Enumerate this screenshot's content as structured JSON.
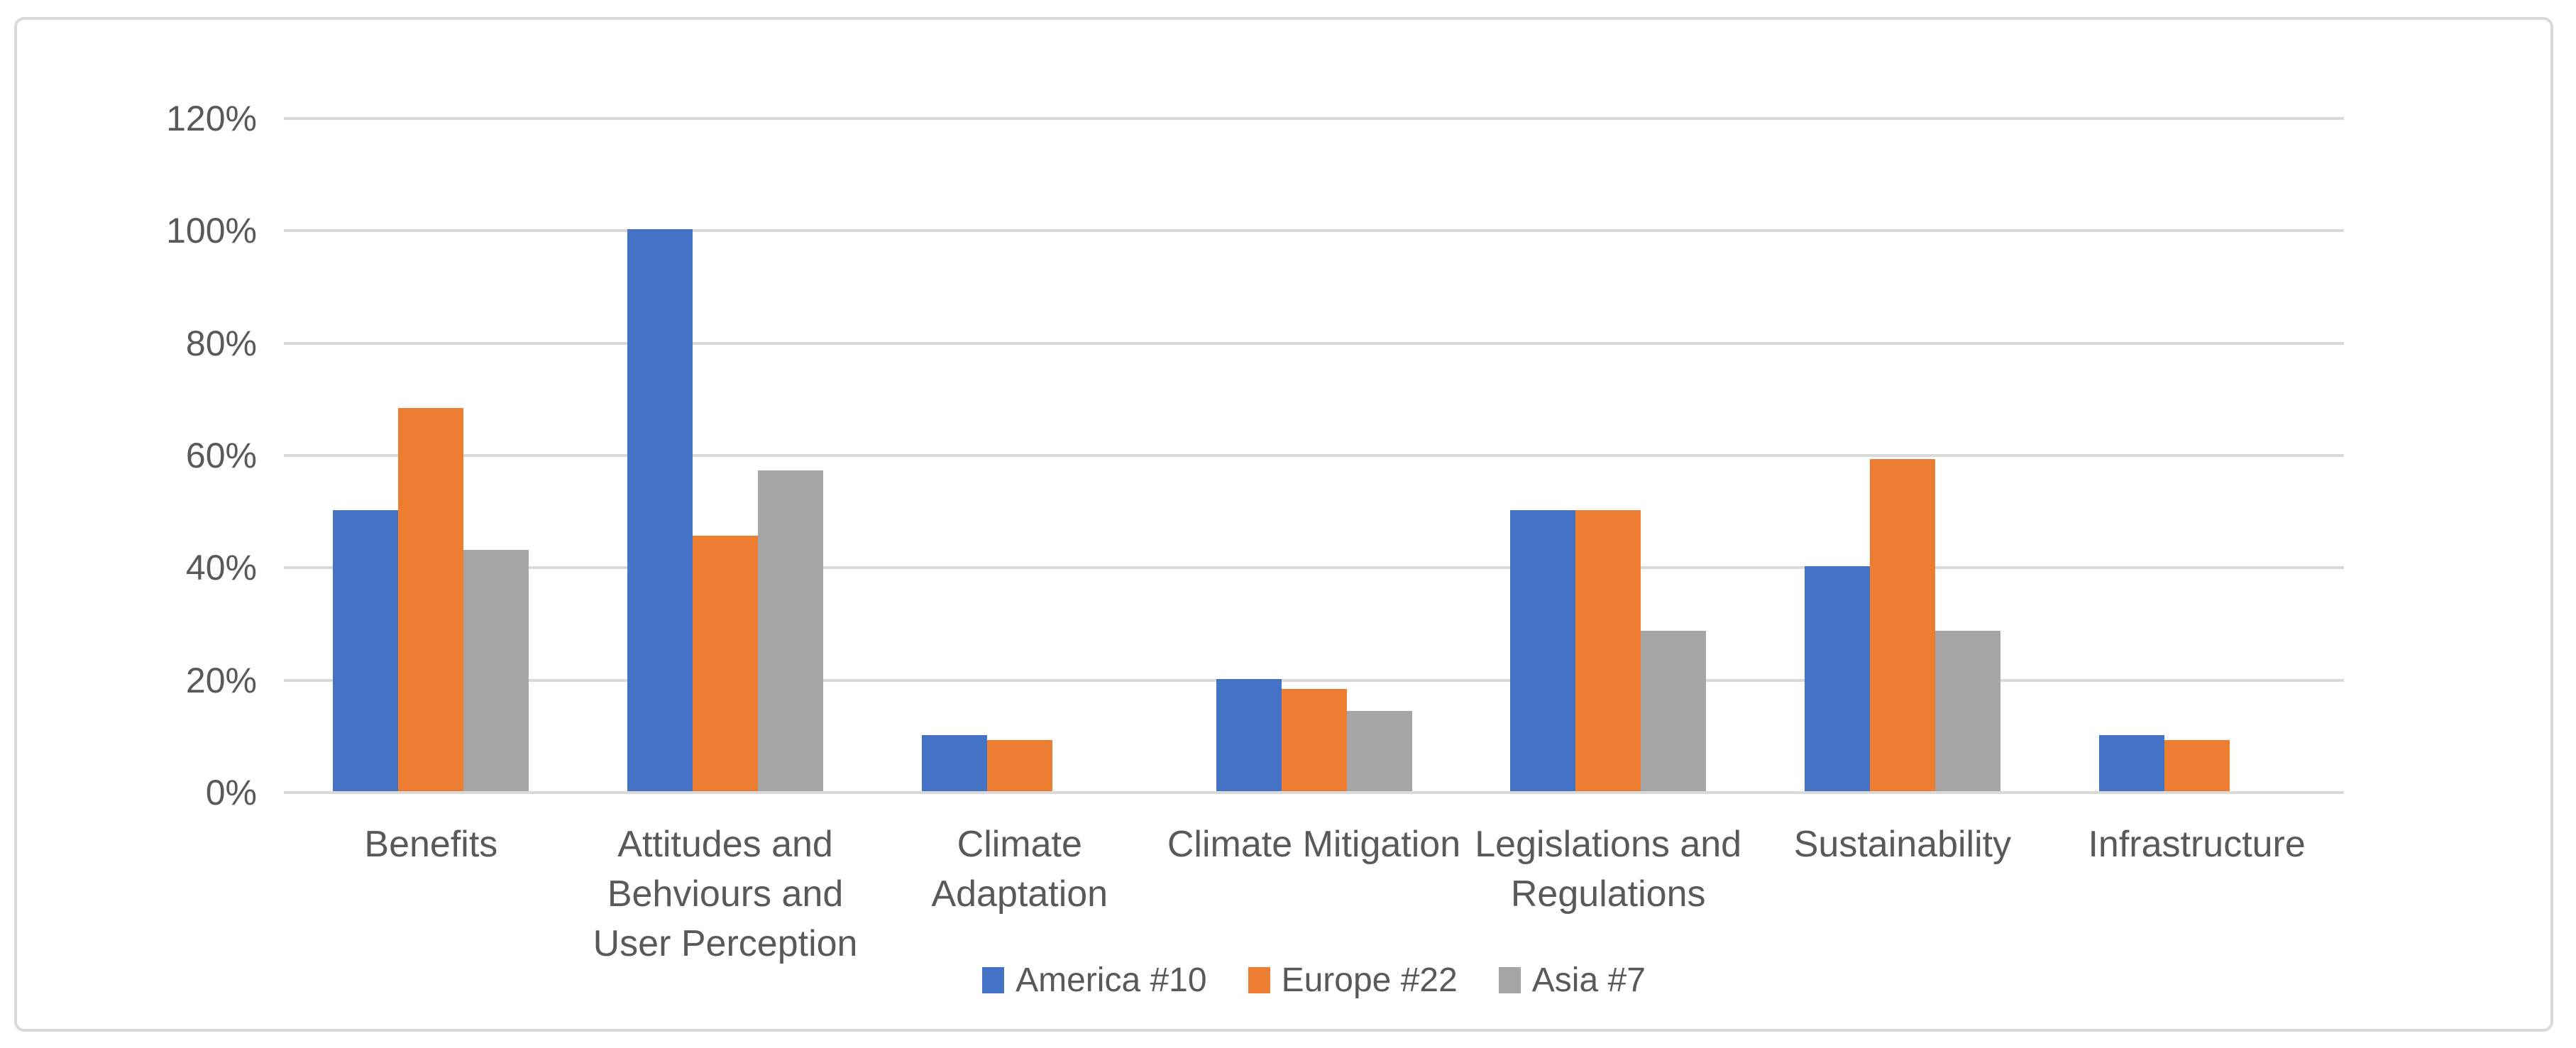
{
  "chart_data": {
    "type": "bar",
    "title": "",
    "xlabel": "",
    "ylabel": "",
    "ylim": [
      0,
      120
    ],
    "grid": true,
    "legend_position": "bottom",
    "value_unit": "%",
    "categories": [
      "Benefits",
      "Attitudes and Behviours and User Perception",
      "Climate Adaptation",
      "Climate Mitigation",
      "Legislations and Regulations",
      "Sustainability",
      "Infrastructure"
    ],
    "category_lines": [
      [
        "Benefits"
      ],
      [
        "Attitudes and",
        "Behviours and",
        "User Perception"
      ],
      [
        "Climate",
        "Adaptation"
      ],
      [
        "Climate Mitigation"
      ],
      [
        "Legislations and",
        "Regulations"
      ],
      [
        "Sustainability"
      ],
      [
        "Infrastructure"
      ]
    ],
    "series": [
      {
        "name": "America #10",
        "color": "#4472C4",
        "values": [
          50,
          100,
          10,
          20,
          50,
          40,
          10
        ]
      },
      {
        "name": "Europe #22",
        "color": "#ED7D31",
        "values": [
          68.2,
          45.5,
          9.1,
          18.2,
          50,
          59.1,
          9.1
        ]
      },
      {
        "name": "Asia #7",
        "color": "#A5A5A5",
        "values": [
          42.9,
          57.1,
          0,
          14.3,
          28.6,
          28.6,
          0
        ]
      }
    ],
    "yticks": [
      {
        "label": "120%",
        "value": 120
      },
      {
        "label": "100%",
        "value": 100
      },
      {
        "label": "80%",
        "value": 80
      },
      {
        "label": "60%",
        "value": 60
      },
      {
        "label": "40%",
        "value": 40
      },
      {
        "label": "20%",
        "value": 20
      },
      {
        "label": "0%",
        "value": 0
      }
    ]
  },
  "colors": {
    "background": "#FFFFFF",
    "frame_border": "#D9D9D9",
    "gridline": "#D9D9D9",
    "axis_text": "#595959",
    "series_america": "#4472C4",
    "series_europe": "#ED7D31",
    "series_asia": "#A5A5A5"
  }
}
